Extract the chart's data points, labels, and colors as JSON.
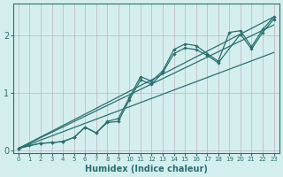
{
  "xlabel": "Humidex (Indice chaleur)",
  "ylabel": "",
  "bg_color": "#d4eeee",
  "line_color": "#2a7070",
  "grid_color": "#c0afc0",
  "xlim": [
    -0.5,
    23.5
  ],
  "ylim": [
    -0.05,
    2.55
  ],
  "xticks": [
    0,
    1,
    2,
    3,
    4,
    5,
    6,
    7,
    8,
    9,
    10,
    11,
    12,
    13,
    14,
    15,
    16,
    17,
    18,
    19,
    20,
    21,
    22,
    23
  ],
  "yticks": [
    0,
    1,
    2
  ],
  "smooth_lines": [
    {
      "x": [
        0,
        23
      ],
      "y": [
        0.03,
        2.32
      ]
    },
    {
      "x": [
        0,
        23
      ],
      "y": [
        0.03,
        2.18
      ]
    },
    {
      "x": [
        0,
        23
      ],
      "y": [
        0.03,
        1.7
      ]
    }
  ],
  "scatter_line1": {
    "x": [
      0,
      1,
      2,
      3,
      4,
      5,
      6,
      7,
      8,
      9,
      10,
      11,
      12,
      13,
      14,
      15,
      16,
      17,
      18,
      19,
      20,
      21,
      22,
      23
    ],
    "y": [
      0.03,
      0.08,
      0.12,
      0.13,
      0.15,
      0.22,
      0.4,
      0.3,
      0.5,
      0.55,
      0.92,
      1.28,
      1.2,
      1.38,
      1.75,
      1.85,
      1.82,
      1.68,
      1.55,
      2.05,
      2.08,
      1.8,
      2.1,
      2.32
    ]
  },
  "scatter_line2": {
    "x": [
      0,
      2,
      3,
      4,
      5,
      6,
      7,
      8,
      9,
      10,
      11,
      12,
      13,
      14,
      15,
      16,
      17,
      18,
      20,
      21,
      22,
      23
    ],
    "y": [
      0.03,
      0.12,
      0.13,
      0.15,
      0.22,
      0.4,
      0.3,
      0.48,
      0.5,
      0.88,
      1.22,
      1.15,
      1.35,
      1.68,
      1.78,
      1.75,
      1.65,
      1.52,
      2.02,
      1.76,
      2.05,
      2.28
    ]
  }
}
